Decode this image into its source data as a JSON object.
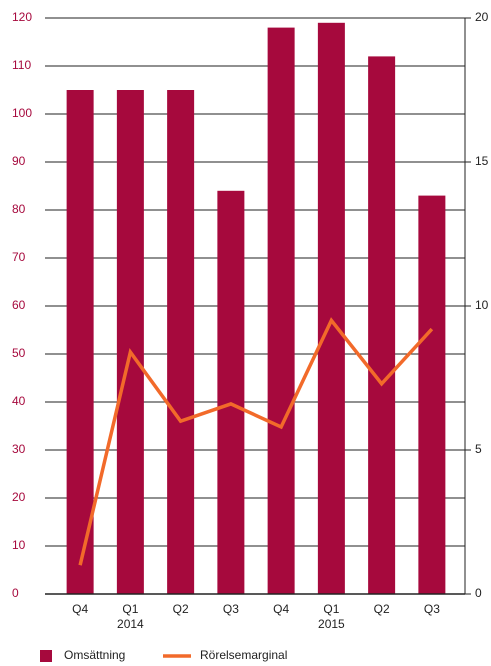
{
  "chart_data": {
    "type": "bar",
    "categories": [
      "Q4",
      "Q1",
      "Q2",
      "Q3",
      "Q4",
      "Q1",
      "Q2",
      "Q3"
    ],
    "category_years": [
      null,
      "2014",
      null,
      null,
      null,
      "2015",
      null,
      null
    ],
    "series": [
      {
        "name": "Omsättning",
        "color": "#a6093d",
        "type": "bar",
        "values": [
          105,
          105,
          105,
          84,
          118,
          119,
          112,
          83
        ]
      },
      {
        "name": "Rörelsemarginal",
        "color": "#f26a2a",
        "type": "line",
        "axis": "y2",
        "values": [
          1.0,
          8.4,
          6.0,
          6.6,
          5.8,
          9.5,
          7.3,
          9.2
        ]
      }
    ],
    "ylim": [
      0,
      120
    ],
    "yticks": [
      0,
      10,
      20,
      30,
      40,
      50,
      60,
      70,
      80,
      90,
      100,
      110,
      120
    ],
    "y2lim": [
      0,
      20
    ],
    "y2ticks": [
      0,
      5,
      10,
      15,
      20
    ],
    "grid": true
  }
}
